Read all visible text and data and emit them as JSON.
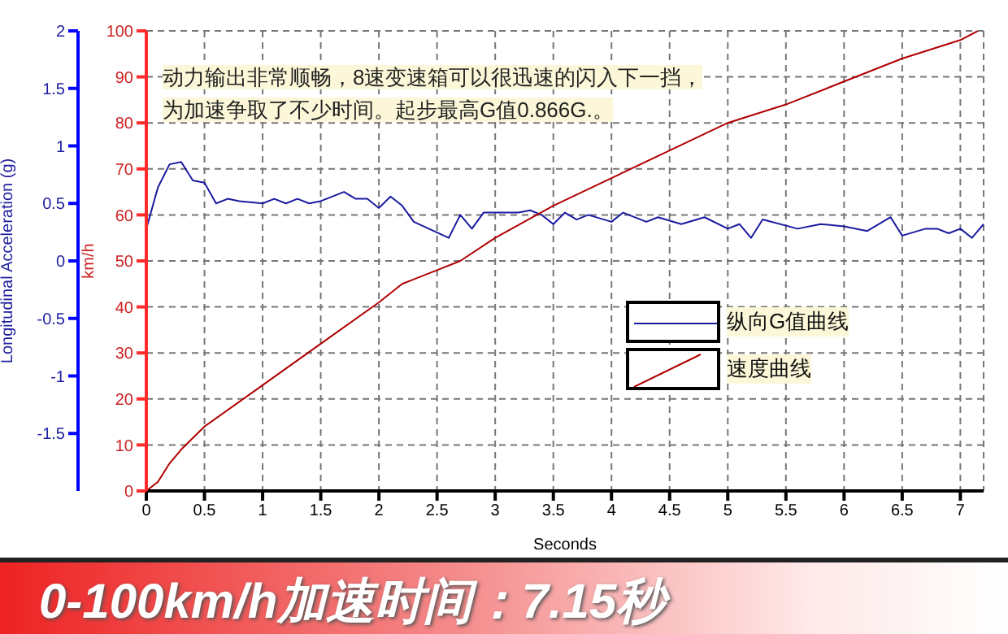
{
  "chart_data": {
    "type": "line",
    "xlabel": "Seconds",
    "ylabel": "km/h",
    "y2label": "Longitudinal Acceleration (g)",
    "xlim": [
      0,
      7.2
    ],
    "xticks": [
      0,
      0.5,
      1,
      1.5,
      2,
      2.5,
      3,
      3.5,
      4,
      4.5,
      5,
      5.5,
      6,
      6.5,
      7
    ],
    "ylim": [
      0,
      100
    ],
    "yticks": [
      0,
      10,
      20,
      30,
      40,
      50,
      60,
      70,
      80,
      90,
      100
    ],
    "y2lim": [
      -2,
      2
    ],
    "y2ticks": [
      -1.5,
      -1,
      -0.5,
      0,
      0.5,
      1,
      1.5,
      2
    ],
    "grid": true,
    "legend": "right",
    "line_style": "solid",
    "marker": "none",
    "annotations": [
      "动力输出非常顺畅，8速变速箱可以很迅速的闪入下一挡，",
      "为加速争取了不少时间。起步最高G值0.866G.。",
      "0-100km/h加速时间：7.15秒"
    ],
    "series": [
      {
        "name": "纵向G值曲线",
        "color": "#1a1aa0",
        "axis": "y2",
        "x": [
          0,
          0.1,
          0.2,
          0.3,
          0.4,
          0.5,
          0.6,
          0.7,
          0.8,
          1.0,
          1.1,
          1.2,
          1.3,
          1.4,
          1.5,
          1.7,
          1.8,
          1.9,
          2.0,
          2.1,
          2.2,
          2.3,
          2.6,
          2.7,
          2.8,
          2.9,
          3.2,
          3.3,
          3.4,
          3.5,
          3.6,
          3.7,
          3.8,
          4.0,
          4.1,
          4.3,
          4.4,
          4.6,
          4.8,
          5.0,
          5.1,
          5.2,
          5.3,
          5.6,
          5.8,
          6.0,
          6.2,
          6.4,
          6.5,
          6.7,
          6.8,
          6.9,
          7.0,
          7.1,
          7.2
        ],
        "values": [
          0.28,
          0.64,
          0.84,
          0.86,
          0.7,
          0.68,
          0.5,
          0.54,
          0.52,
          0.5,
          0.54,
          0.5,
          0.54,
          0.5,
          0.52,
          0.6,
          0.54,
          0.54,
          0.46,
          0.56,
          0.48,
          0.34,
          0.2,
          0.4,
          0.28,
          0.42,
          0.42,
          0.44,
          0.4,
          0.32,
          0.42,
          0.36,
          0.4,
          0.34,
          0.42,
          0.34,
          0.38,
          0.32,
          0.38,
          0.28,
          0.32,
          0.2,
          0.36,
          0.28,
          0.32,
          0.3,
          0.26,
          0.38,
          0.22,
          0.28,
          0.28,
          0.24,
          0.28,
          0.2,
          0.32
        ]
      },
      {
        "name": "速度曲线",
        "color": "#b00000",
        "x": [
          0,
          0.1,
          0.2,
          0.3,
          0.5,
          1,
          1.5,
          2,
          2.2,
          2.5,
          2.7,
          3,
          3.5,
          4,
          4.5,
          5,
          5.5,
          6,
          6.5,
          7,
          7.15
        ],
        "values": [
          0,
          2,
          6,
          9,
          14,
          23,
          32,
          41,
          45,
          48,
          50,
          55,
          62,
          68,
          74,
          80,
          84,
          89,
          94,
          98,
          100
        ]
      }
    ]
  }
}
